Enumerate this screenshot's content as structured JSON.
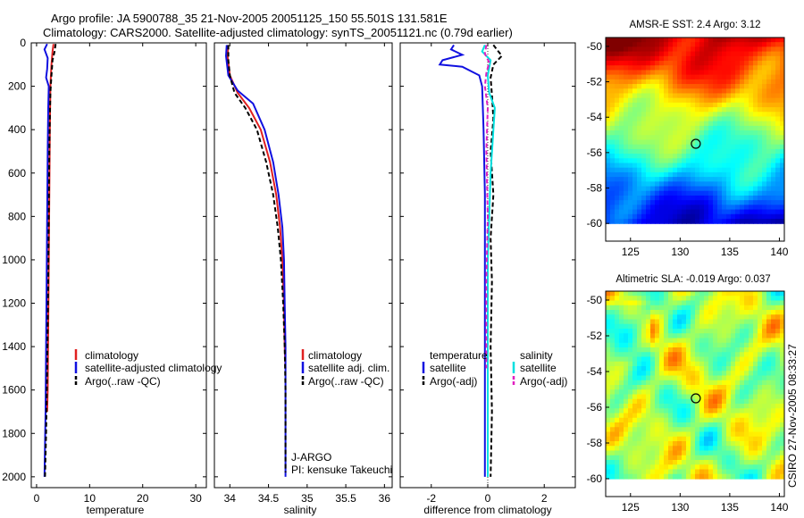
{
  "figure": {
    "title_line1": "Argo profile: JA 5900788_35 21-Nov-2005 20051125_150 55.501S 131.581E",
    "title_line2": "Climatology: CARS2000. Satellite-adjusted climatology: synTS_20051121.nc (0.79d earlier)",
    "side_label": "CSIRO 27-Nov-2005 08:33:27"
  },
  "colors": {
    "climatology": "#e02020",
    "satellite": "#1010e0",
    "argo": "#000000",
    "satellite_salinity": "#00e0e0",
    "argo_adj_salinity": "#e020c0"
  },
  "chart_data": [
    {
      "type": "line",
      "name": "temperature-profile",
      "xlabel": "temperature",
      "xlim": [
        -1,
        32
      ],
      "ylim": [
        2050,
        0
      ],
      "xticks": [
        0,
        10,
        20,
        30
      ],
      "yticks": [
        0,
        200,
        400,
        600,
        800,
        1000,
        1200,
        1400,
        1600,
        1800,
        2000
      ],
      "legend": [
        "climatology",
        "satellite-adjusted climatology",
        "Argo(..raw -QC)"
      ],
      "legend_position": "lower-left",
      "series": [
        {
          "name": "climatology",
          "points": [
            [
              3.2,
              5
            ],
            [
              3.0,
              40
            ],
            [
              2.8,
              100
            ],
            [
              2.6,
              200
            ],
            [
              2.5,
              400
            ],
            [
              2.4,
              700
            ],
            [
              2.3,
              1000
            ],
            [
              2.2,
              1300
            ],
            [
              2.1,
              1600
            ],
            [
              2.0,
              1700
            ]
          ]
        },
        {
          "name": "satellite-adjusted climatology",
          "points": [
            [
              2.0,
              5
            ],
            [
              1.5,
              30
            ],
            [
              2.1,
              70
            ],
            [
              2.0,
              120
            ],
            [
              1.8,
              160
            ],
            [
              2.3,
              200
            ],
            [
              2.2,
              300
            ],
            [
              2.1,
              500
            ],
            [
              2.0,
              800
            ],
            [
              1.9,
              1100
            ],
            [
              1.8,
              1400
            ],
            [
              1.7,
              1700
            ],
            [
              1.5,
              2000
            ]
          ]
        },
        {
          "name": "Argo(..raw -QC)",
          "points": [
            [
              3.6,
              5
            ],
            [
              3.4,
              40
            ],
            [
              3.0,
              80
            ],
            [
              2.8,
              150
            ],
            [
              2.6,
              230
            ],
            [
              2.5,
              350
            ],
            [
              2.4,
              500
            ],
            [
              2.3,
              800
            ],
            [
              2.2,
              1100
            ],
            [
              2.0,
              1500
            ],
            [
              1.8,
              1800
            ],
            [
              1.6,
              2000
            ]
          ]
        }
      ]
    },
    {
      "type": "line",
      "name": "salinity-profile",
      "xlabel": "salinity",
      "xlim": [
        33.8,
        36.1
      ],
      "ylim": [
        2050,
        0
      ],
      "xticks": [
        34,
        34.5,
        35,
        35.5,
        36
      ],
      "legend": [
        "climatology",
        "satellite adj. clim.",
        "Argo(..raw -QC)"
      ],
      "legend_position": "lower-right",
      "annotations": [
        "J-ARGO",
        "PI: kensuke Takeuchi"
      ],
      "series": [
        {
          "name": "climatology",
          "points": [
            [
              33.98,
              10
            ],
            [
              33.97,
              60
            ],
            [
              34.0,
              150
            ],
            [
              34.1,
              230
            ],
            [
              34.25,
              300
            ],
            [
              34.4,
              400
            ],
            [
              34.52,
              550
            ],
            [
              34.6,
              700
            ],
            [
              34.65,
              850
            ],
            [
              34.68,
              1000
            ],
            [
              34.7,
              1200
            ],
            [
              34.71,
              1400
            ],
            [
              34.72,
              1500
            ]
          ]
        },
        {
          "name": "satellite adj. clim.",
          "points": [
            [
              33.96,
              10
            ],
            [
              33.95,
              60
            ],
            [
              33.98,
              150
            ],
            [
              34.1,
              220
            ],
            [
              34.3,
              280
            ],
            [
              34.45,
              400
            ],
            [
              34.56,
              550
            ],
            [
              34.63,
              700
            ],
            [
              34.68,
              850
            ],
            [
              34.7,
              1000
            ],
            [
              34.71,
              1200
            ],
            [
              34.72,
              1400
            ],
            [
              34.72,
              1600
            ],
            [
              34.72,
              1800
            ],
            [
              34.72,
              2000
            ]
          ]
        },
        {
          "name": "Argo(..raw -QC)",
          "points": [
            [
              33.98,
              10
            ],
            [
              33.98,
              80
            ],
            [
              34.0,
              150
            ],
            [
              34.06,
              230
            ],
            [
              34.2,
              300
            ],
            [
              34.35,
              400
            ],
            [
              34.47,
              550
            ],
            [
              34.56,
              700
            ],
            [
              34.62,
              850
            ],
            [
              34.66,
              1000
            ],
            [
              34.69,
              1200
            ],
            [
              34.71,
              1400
            ],
            [
              34.72,
              1600
            ],
            [
              34.72,
              1800
            ],
            [
              34.72,
              1980
            ]
          ]
        }
      ]
    },
    {
      "type": "line",
      "name": "difference-profile",
      "xlabel": "difference from climatology",
      "xlim": [
        -3.1,
        3.1
      ],
      "ylim": [
        2050,
        0
      ],
      "xticks": [
        -2,
        0,
        2
      ],
      "legend": [
        "temperature",
        "satellite",
        "Argo(-adj)",
        "salinity",
        "satellite",
        "Argo(-adj)"
      ],
      "legend_position": "lower-center",
      "series": [
        {
          "name": "temperature satellite",
          "points": [
            [
              -1.2,
              10
            ],
            [
              -1.3,
              30
            ],
            [
              -0.9,
              55
            ],
            [
              -1.6,
              80
            ],
            [
              -1.7,
              100
            ],
            [
              -0.9,
              110
            ],
            [
              -0.3,
              150
            ],
            [
              -0.2,
              200
            ],
            [
              -0.15,
              400
            ],
            [
              -0.1,
              700
            ],
            [
              -0.1,
              1000
            ],
            [
              -0.1,
              1400
            ],
            [
              -0.1,
              1700
            ],
            [
              -0.1,
              2000
            ]
          ]
        },
        {
          "name": "temperature Argo(-adj)",
          "points": [
            [
              0.2,
              10
            ],
            [
              0.5,
              60
            ],
            [
              0.2,
              100
            ],
            [
              0.1,
              160
            ],
            [
              0.15,
              240
            ],
            [
              0.2,
              350
            ],
            [
              0.1,
              500
            ],
            [
              0.2,
              700
            ],
            [
              0.1,
              900
            ],
            [
              0.15,
              1100
            ],
            [
              0.1,
              1400
            ],
            [
              0.15,
              1700
            ],
            [
              0.1,
              2000
            ]
          ]
        },
        {
          "name": "salinity satellite",
          "points": [
            [
              -0.1,
              10
            ],
            [
              -0.2,
              40
            ],
            [
              0.1,
              80
            ],
            [
              0.0,
              150
            ],
            [
              0.05,
              230
            ],
            [
              0.25,
              300
            ],
            [
              0.2,
              400
            ],
            [
              0.1,
              600
            ],
            [
              0.05,
              800
            ],
            [
              0.0,
              1000
            ],
            [
              0.0,
              1400
            ],
            [
              0.0,
              1700
            ],
            [
              0.0,
              2000
            ]
          ]
        },
        {
          "name": "salinity Argo(-adj)",
          "points": [
            [
              -0.05,
              10
            ],
            [
              -0.1,
              50
            ],
            [
              0.05,
              90
            ],
            [
              -0.05,
              140
            ],
            [
              -0.1,
              200
            ],
            [
              0.0,
              300
            ],
            [
              -0.05,
              500
            ],
            [
              0.0,
              800
            ],
            [
              -0.05,
              1100
            ],
            [
              -0.05,
              1500
            ]
          ]
        }
      ]
    },
    {
      "type": "heatmap",
      "name": "amsre-sst-map",
      "title": "AMSR-E SST: 2.4 Argo: 3.12",
      "xlim": [
        122.5,
        140.5
      ],
      "ylim": [
        -61,
        -49.5
      ],
      "xticks": [
        125,
        130,
        135,
        140
      ],
      "yticks": [
        -50,
        -52,
        -54,
        -56,
        -58,
        -60
      ],
      "marker": [
        131.581,
        -55.501
      ],
      "data_extent": {
        "lon": [
          122.5,
          140.5
        ],
        "lat": [
          -60.0,
          -49.5
        ]
      }
    },
    {
      "type": "heatmap",
      "name": "altimetric-sla-map",
      "title": "Altimetric SLA: -0.019 Argo: 0.037",
      "xlim": [
        122.5,
        140.5
      ],
      "ylim": [
        -61,
        -49.5
      ],
      "xticks": [
        125,
        130,
        135,
        140
      ],
      "yticks": [
        -50,
        -52,
        -54,
        -56,
        -58,
        -60
      ],
      "marker": [
        131.581,
        -55.501
      ],
      "data_extent": {
        "lon": [
          122.5,
          140.5
        ],
        "lat": [
          -60.0,
          -49.5
        ]
      }
    }
  ]
}
